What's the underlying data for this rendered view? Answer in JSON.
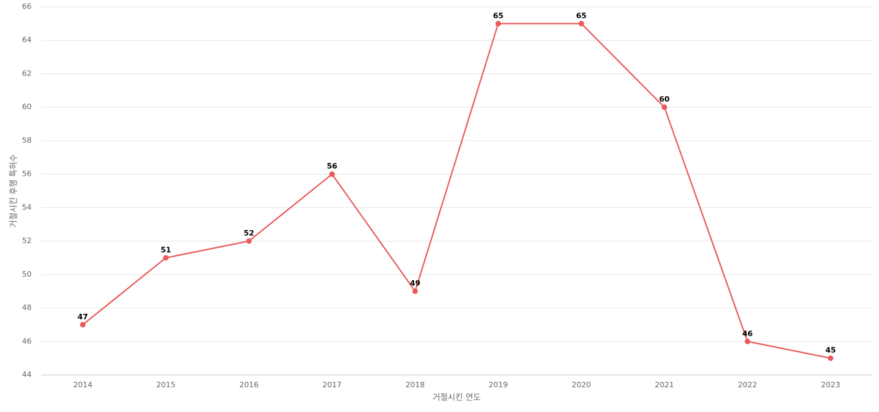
{
  "chart_data": {
    "type": "line",
    "x_label": "거절시킨 연도",
    "y_label": "거절시킨 후행 특허수",
    "categories": [
      "2014",
      "2015",
      "2016",
      "2017",
      "2018",
      "2019",
      "2020",
      "2021",
      "2022",
      "2023"
    ],
    "series": [
      {
        "name": "거절시킨 후행 특허수",
        "color": "#ea5a5a",
        "values": [
          47,
          51,
          52,
          56,
          49,
          65,
          65,
          60,
          46,
          45
        ]
      }
    ],
    "ylim": [
      44,
      66
    ],
    "yticks": [
      44,
      46,
      48,
      50,
      52,
      54,
      56,
      58,
      60,
      62,
      64,
      66
    ],
    "grid": true
  }
}
